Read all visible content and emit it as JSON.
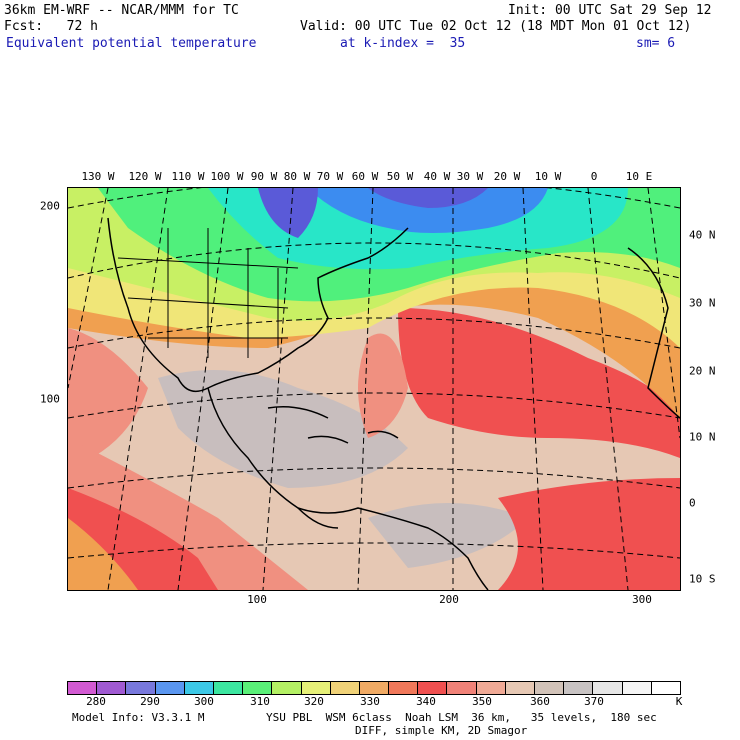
{
  "header": {
    "model_line": "36km EM-WRF -- NCAR/MMM for TC",
    "init_line": "Init: 00 UTC Sat 29 Sep 12",
    "fcst_line": "Fcst:   72 h",
    "valid_line": "Valid: 00 UTC Tue 02 Oct 12 (18 MDT Mon 01 Oct 12)",
    "field_name": "Equivalent potential temperature",
    "level_line": "at k-index =  35",
    "smooth_line": "sm= 6"
  },
  "map": {
    "top_lon_ticks": [
      "130 W",
      "120 W",
      "110 W",
      "100 W",
      "90 W",
      "80 W",
      "70 W",
      "60 W",
      "50 W",
      "40 W",
      "30 W",
      "20 W",
      "10 W",
      "0",
      "10 E"
    ],
    "right_lat_ticks": [
      "40 N",
      "30 N",
      "20 N",
      "10 N",
      "0",
      "10 S"
    ],
    "left_grid_ticks": [
      "200",
      "100"
    ],
    "bottom_grid_ticks": [
      "100",
      "200",
      "300"
    ],
    "colors": {
      "cold_purple": "#5a5ad8",
      "blue": "#3c8cf0",
      "cyan": "#28e6c8",
      "green": "#50f07c",
      "yellow_green": "#c8f064",
      "yellow": "#f0e678",
      "orange": "#f0a050",
      "red": "#f05050",
      "salmon": "#f09080",
      "tan": "#e6c8b4",
      "gray": "#c8bebe"
    }
  },
  "colorbar": {
    "label_values": [
      "280",
      "290",
      "300",
      "310",
      "320",
      "330",
      "340",
      "350",
      "360",
      "370",
      "K"
    ],
    "swatch_colors": [
      "#d25ad2",
      "#a05ad2",
      "#7878dc",
      "#5a96f0",
      "#3cc8e6",
      "#3ce6a0",
      "#5af078",
      "#b4f064",
      "#e6f078",
      "#f0d278",
      "#f0aa64",
      "#f0785a",
      "#f05050",
      "#f08278",
      "#f0aa96",
      "#e6c8b4",
      "#d2c3b9",
      "#c8c3c3",
      "#e6e6e6",
      "#f5f5f5",
      "#ffffff"
    ]
  },
  "footer": {
    "model_info": "Model Info: V3.3.1 M",
    "physics_line": "YSU PBL  WSM 6class  Noah LSM  36 km,   35 levels,  180 sec",
    "diff_line": "DIFF, simple KM, 2D Smagor"
  }
}
